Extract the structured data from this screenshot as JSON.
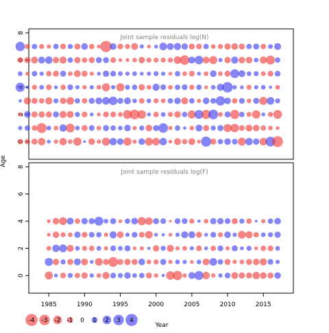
{
  "chart_data": [
    {
      "type": "scatter",
      "title": "Joint sample residuals log(N)",
      "xlim": [
        1982.2,
        2019.2
      ],
      "ylim": [
        -1.3,
        8.3
      ],
      "yticks": [
        "0",
        "2",
        "4",
        "6",
        "8"
      ],
      "ages": [
        0,
        1,
        2,
        3,
        4,
        5,
        6,
        7
      ],
      "residuals": {
        "0": [
          -0.8,
          -0.8,
          -1.0,
          -1.5,
          0.4,
          -0.5,
          -1.5,
          -0.6,
          -1.9,
          0.2,
          -1.2,
          -0.5,
          -1.8,
          1.5,
          1.2,
          -1.8,
          -0.5,
          1.2,
          -1.7,
          -1.6,
          1.5,
          -0.4,
          -1.3,
          -0.8,
          -1.3,
          -0.4,
          2.8,
          -1.0,
          0.8,
          1.2,
          0.9,
          -1.8,
          1.5,
          1.1,
          -1.6,
          2.6,
          -3.2
        ],
        "1": [
          0.5,
          0.8,
          -0.8,
          -2.7,
          0.6,
          -0.6,
          1.5,
          -2.1,
          0.6,
          -1.0,
          0.9,
          -0.6,
          1.0,
          0.8,
          0.6,
          1.2,
          -0.5,
          0.7,
          -1.2,
          1.0,
          2.5,
          -0.5,
          0.8,
          0.3,
          -0.6,
          1.3,
          -1.0,
          0.7,
          1.0,
          -1.8,
          -2.0,
          -0.9,
          -1.3,
          -1.2,
          -0.8,
          -0.6,
          -0.4
        ],
        "2": [
          -0.5,
          1.2,
          -1.0,
          -1.1,
          -1.0,
          1.0,
          -1.4,
          -1.3,
          0.7,
          -0.9,
          0.4,
          -0.4,
          -0.9,
          -0.9,
          -0.6,
          -2.1,
          -2.6,
          -2.0,
          0.4,
          -0.8,
          0.6,
          -0.7,
          -1.2,
          0.8,
          -1.8,
          2.1,
          -2.3,
          2.6,
          -0.6,
          1.0,
          -2.3,
          0.8,
          -0.7,
          -1.9,
          0.4,
          -0.7,
          -2.1
        ],
        "3": [
          0.3,
          -1.4,
          -1.0,
          -0.8,
          -1.4,
          0.7,
          -1.1,
          -1.6,
          0.8,
          -0.8,
          1.0,
          1.3,
          1.6,
          2.0,
          1.0,
          1.3,
          0.6,
          -0.8,
          0.6,
          -0.7,
          -0.6,
          0.8,
          1.2,
          -1.3,
          0.8,
          -0.5,
          1.2,
          0.9,
          2.4,
          1.2,
          -0.8,
          0.9,
          -0.6,
          1.0,
          -1.8,
          1.6,
          0.7
        ],
        "4": [
          2.3,
          0.3,
          -0.7,
          0.6,
          -0.9,
          0.4,
          -0.8,
          0.9,
          0.5,
          -0.5,
          0.5,
          -0.6,
          -1.8,
          0.5,
          -1.8,
          0.7,
          0.8,
          -1.1,
          -0.6,
          1.4,
          0.9,
          -0.6,
          0.8,
          0.9,
          -0.7,
          0.8,
          -0.4,
          0.6,
          1.4,
          3.0,
          0.5,
          0.4,
          -0.7,
          0.5,
          0.6,
          0.3,
          -0.6
        ],
        "5": [
          0.6,
          -0.4,
          0.8,
          0.5,
          -0.8,
          -1.0,
          1.0,
          -0.6,
          -1.3,
          -1.0,
          -0.5,
          0.4,
          1.1,
          0.9,
          0.6,
          0.5,
          0.6,
          0.4,
          0.5,
          0.7,
          0.5,
          -0.4,
          0.8,
          -0.6,
          -0.9,
          0.4,
          -0.6,
          1.2,
          -0.6,
          -1.0,
          2.1,
          1.3,
          0.6,
          0.7,
          -0.6,
          -0.9,
          0.9
        ],
        "6": [
          -0.9,
          -1.0,
          -1.3,
          1.3,
          1.5,
          -1.1,
          -1.4,
          0.8,
          -1.1,
          -0.8,
          -1.0,
          1.0,
          1.0,
          -0.9,
          -0.4,
          -0.4,
          -0.6,
          -1.1,
          -0.7,
          -0.7,
          -0.7,
          -0.7,
          -1.6,
          -2.5,
          1.3,
          2.0,
          -1.3,
          -1.8,
          0.5,
          -1.1,
          1.4,
          -1.2,
          -1.2,
          0.6,
          -1.4,
          -2.2,
          0.8
        ],
        "7": [
          2.4,
          -0.7,
          0.8,
          -0.7,
          -0.5,
          0.8,
          -0.9,
          0.7,
          -1.0,
          1.2,
          -0.8,
          -0.4,
          -3.5,
          1.2,
          -0.9,
          -0.7,
          -1.3,
          0.5,
          -0.4,
          0.4,
          1.6,
          1.3,
          1.4,
          1.1,
          -1.0,
          -0.9,
          0.8,
          -0.6,
          -0.7,
          -1.1,
          -1.2,
          -1.0,
          0.8,
          1.0,
          -0.8,
          0.6,
          1.3
        ]
      }
    },
    {
      "type": "scatter",
      "title": "Joint sample residuals log(F)",
      "xlim": [
        1982.2,
        2019.2
      ],
      "ylim": [
        -1.3,
        8.3
      ],
      "yticks": [
        "0",
        "2",
        "4",
        "6",
        "8"
      ],
      "xticks": [
        "1985",
        "1990",
        "1995",
        "2000",
        "2005",
        "2010",
        "2015"
      ],
      "ages": [
        0,
        1,
        2,
        3,
        4
      ],
      "residuals": {
        "0": [
          -1.8,
          0.4,
          -0.9,
          0.7,
          -0.8,
          -1.1,
          0.5,
          -0.6,
          -1.4,
          0.9,
          0.7,
          1.2,
          0.6,
          0.8,
          -1.0,
          -0.5,
          0.3,
          -2.0,
          -2.4,
          -0.5,
          1.3,
          2.2,
          -1.5,
          -0.5,
          0.5,
          0.9,
          -1.3,
          -1.1,
          -1.0,
          -1.5,
          -1.2,
          -1.0,
          1.2
        ],
        "1": [
          1.8,
          -1.1,
          0.7,
          -1.0,
          1.3,
          -1.3,
          0.4,
          -1.6,
          -1.0,
          -2.6,
          -1.0,
          -1.1,
          -1.0,
          1.2,
          -0.6,
          -0.7,
          1.0,
          -0.5,
          0.6,
          0.5,
          -0.4,
          0.6,
          -1.3,
          1.6,
          0.8,
          -1.0,
          -0.5,
          -0.6,
          -1.0,
          -1.2,
          -1.4,
          0.9,
          0.5
        ],
        "2": [
          -0.6,
          1.5,
          1.7,
          -1.3,
          0.6,
          -0.7,
          -0.8,
          0.6,
          -0.5,
          0.9,
          0.6,
          1.0,
          -0.4,
          -0.5,
          0.3,
          -1.1,
          0.7,
          -1.4,
          -0.5,
          -0.6,
          0.5,
          -0.9,
          0.4,
          -0.8,
          0.9,
          -0.5,
          1.0,
          0.4,
          0.7,
          -0.4,
          -0.8,
          -0.9,
          0.6
        ],
        "3": [
          -0.4,
          -1.2,
          -0.7,
          -0.6,
          1.1,
          -0.9,
          0.9,
          0.8,
          -0.5,
          1.4,
          -1.2,
          0.5,
          0.9,
          -0.9,
          -1.6,
          0.4,
          0.3,
          -0.4,
          0.5,
          1.3,
          1.3,
          -1.0,
          0.4,
          0.9,
          -0.7,
          1.2,
          0.5,
          -1.7,
          -1.4,
          -0.8,
          0.6,
          0.7,
          1.1
        ],
        "4": [
          -0.4,
          -1.2,
          -1.7,
          1.3,
          -0.8,
          1.1,
          1.0,
          2.2,
          0.6,
          1.0,
          -0.4,
          0.8,
          1.2,
          -1.9,
          -1.6,
          1.0,
          0.9,
          -0.2,
          0.9,
          0.9,
          -0.7,
          0.3,
          -0.6,
          1.1,
          1.1,
          0.9,
          -1.0,
          0.7,
          -0.8,
          0.2,
          -0.5,
          0.8,
          1.2
        ]
      }
    }
  ],
  "axes": {
    "xlabel": "Year",
    "ylabel": "Age"
  },
  "legend": {
    "values": [
      -4,
      -3,
      -2,
      -1,
      0,
      1,
      2,
      3,
      4
    ]
  },
  "colors": {
    "positive": "#3333ee",
    "negative": "#ee3333",
    "axis": "#000000",
    "title": "#808080"
  }
}
